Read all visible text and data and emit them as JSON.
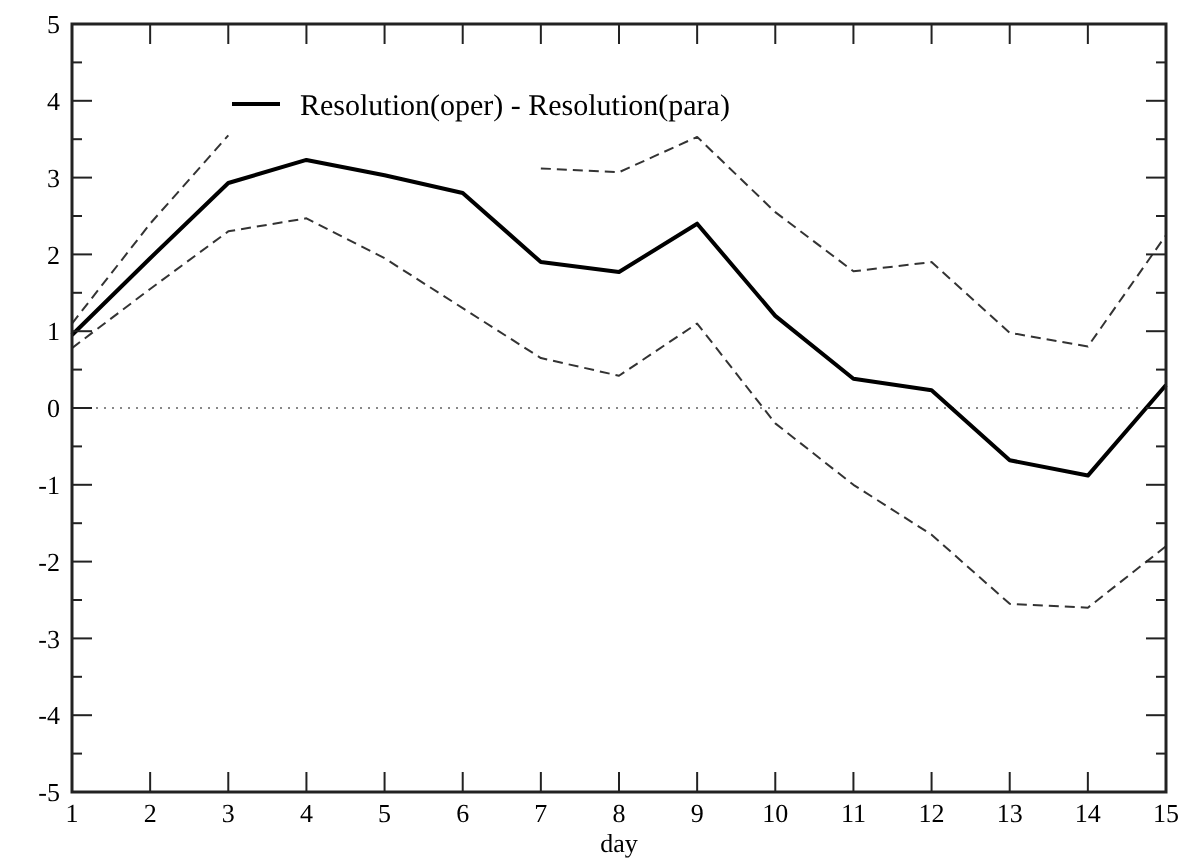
{
  "chart_data": {
    "type": "line",
    "xlabel": "day",
    "x": [
      1,
      2,
      3,
      4,
      5,
      6,
      7,
      8,
      9,
      10,
      11,
      12,
      13,
      14,
      15
    ],
    "xlim": [
      1,
      15
    ],
    "xticks": [
      1,
      2,
      3,
      4,
      5,
      6,
      7,
      8,
      9,
      10,
      11,
      12,
      13,
      14,
      15
    ],
    "ylim": [
      -5,
      5
    ],
    "yticks": [
      -5,
      {
        "value": -4.5,
        "label": null
      },
      -4,
      {
        "value": -3.5,
        "label": null
      },
      -3,
      {
        "value": -2.5,
        "label": null
      },
      -2,
      {
        "value": -1.5,
        "label": null
      },
      -1,
      {
        "value": -0.5,
        "label": null
      },
      0,
      {
        "value": 0.5,
        "label": null
      },
      1,
      {
        "value": 1.5,
        "label": null
      },
      2,
      {
        "value": 2.5,
        "label": null
      },
      3,
      {
        "value": 3.5,
        "label": null
      },
      4,
      {
        "value": 4.5,
        "label": null
      },
      5
    ],
    "grid": false,
    "legend": "top left",
    "ref_lines": [
      {
        "axis": "y",
        "value": 0,
        "color": "#888888",
        "line_style": "dotted"
      }
    ],
    "series": [
      {
        "name": "Resolution(oper) - Resolution(para)",
        "color": "#000000",
        "line_style": "solid",
        "values": [
          0.95,
          1.95,
          2.93,
          3.23,
          3.03,
          2.8,
          1.9,
          1.77,
          2.4,
          1.2,
          0.38,
          0.23,
          -0.68,
          -0.88,
          0.3
        ]
      },
      {
        "color": "#333333",
        "line_style": "dashed",
        "values": [
          1.1,
          2.4,
          3.55,
          null,
          null,
          null,
          3.12,
          3.07,
          3.53,
          2.55,
          1.78,
          1.9,
          0.98,
          0.8,
          2.25
        ]
      },
      {
        "color": "#333333",
        "line_style": "dashed",
        "values": [
          0.78,
          1.55,
          2.3,
          2.47,
          1.95,
          1.3,
          0.65,
          0.42,
          1.1,
          -0.2,
          -1.0,
          -1.65,
          -2.55,
          -2.6,
          -1.8
        ]
      }
    ]
  }
}
